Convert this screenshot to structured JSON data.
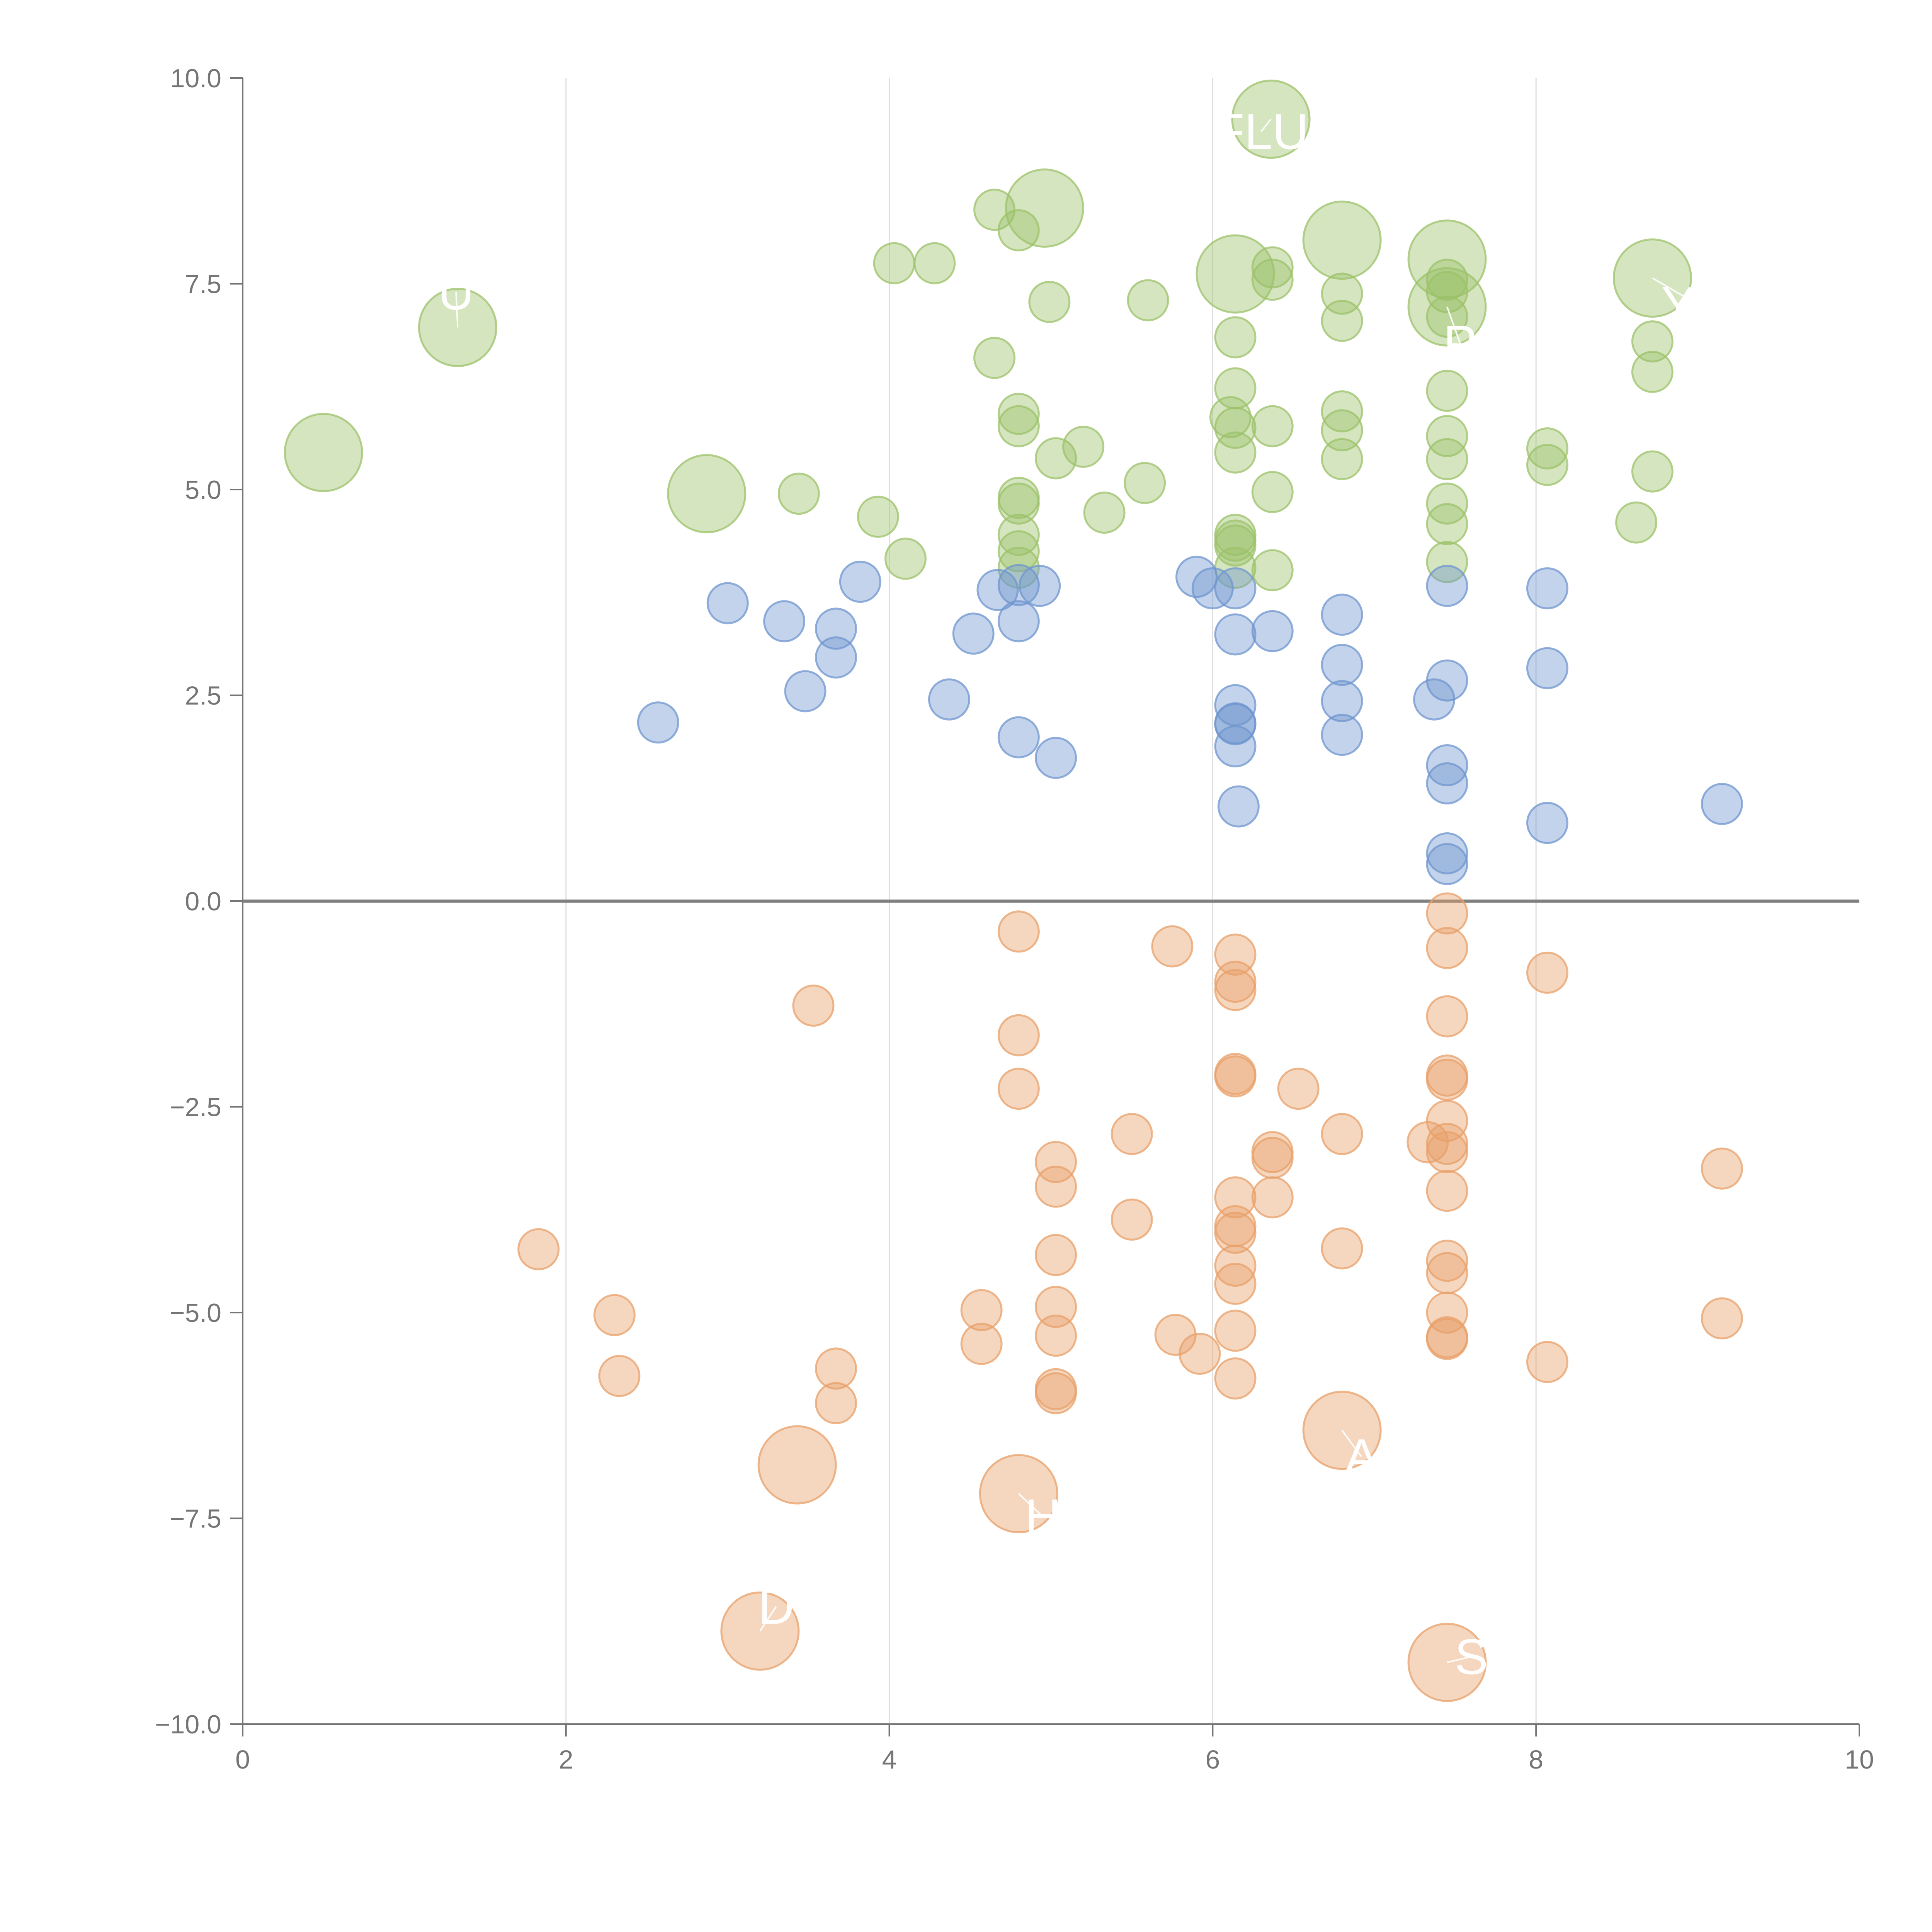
{
  "colors": {
    "positive_high": "#9cc16a",
    "positive_low": "#6f95cf",
    "negative": "#e8a06a"
  },
  "chart_data": {
    "type": "scatter",
    "title": "",
    "xlabel": "",
    "ylabel": "",
    "xlim": [
      0,
      10
    ],
    "ylim": [
      -10,
      10
    ],
    "x_ticks": [
      0,
      2,
      4,
      6,
      8,
      10
    ],
    "x_tick_labels": [
      "0",
      "2",
      "4",
      "6",
      "8",
      "10"
    ],
    "y_ticks": [
      -10,
      -7.5,
      -5,
      -2.5,
      0,
      2.5,
      5,
      7.5,
      10
    ],
    "y_tick_labels": [
      "−10.0",
      "−7.5",
      "−5.0",
      "−2.5",
      "0.0",
      "2.5",
      "5.0",
      "7.5",
      "10.0"
    ],
    "grid": "vertical",
    "reference_line_y": 0,
    "encoding": "bubble size and color indicate magnitude; green = y above 4, blue = 0 to 4, orange = below 0",
    "series": [
      {
        "name": "green",
        "color_key": "positive_high",
        "points": [
          [
            4.65,
            8.4,
            1
          ],
          [
            4.8,
            8.15,
            1
          ],
          [
            4.03,
            7.75,
            1
          ],
          [
            4.28,
            7.75,
            1
          ],
          [
            4.99,
            7.28,
            1
          ],
          [
            5.6,
            7.3,
            1
          ],
          [
            6.37,
            7.7,
            1
          ],
          [
            6.37,
            7.55,
            1
          ],
          [
            6.14,
            6.85,
            1
          ],
          [
            4.65,
            6.6,
            1
          ],
          [
            6.8,
            7.38,
            1
          ],
          [
            6.8,
            7.05,
            1
          ],
          [
            7.45,
            7.55,
            1
          ],
          [
            7.45,
            7.4,
            1
          ],
          [
            7.45,
            7.1,
            1
          ],
          [
            8.72,
            6.8,
            1
          ],
          [
            8.72,
            6.43,
            1
          ],
          [
            4.8,
            5.92,
            1
          ],
          [
            4.8,
            5.77,
            1
          ],
          [
            5.03,
            5.38,
            1
          ],
          [
            5.2,
            5.52,
            1
          ],
          [
            6.14,
            6.23,
            1
          ],
          [
            6.11,
            5.88,
            1
          ],
          [
            6.14,
            5.75,
            1
          ],
          [
            6.14,
            5.45,
            1
          ],
          [
            6.37,
            5.77,
            1
          ],
          [
            6.8,
            5.95,
            1
          ],
          [
            6.8,
            5.72,
            1
          ],
          [
            6.8,
            5.37,
            1
          ],
          [
            7.45,
            6.2,
            1
          ],
          [
            7.45,
            5.65,
            1
          ],
          [
            7.45,
            5.37,
            1
          ],
          [
            8.07,
            5.5,
            1
          ],
          [
            8.07,
            5.3,
            1
          ],
          [
            8.72,
            5.22,
            1
          ],
          [
            3.44,
            4.95,
            1
          ],
          [
            3.93,
            4.67,
            1
          ],
          [
            4.1,
            4.16,
            1
          ],
          [
            4.8,
            4.9,
            1
          ],
          [
            4.8,
            4.83,
            1
          ],
          [
            4.8,
            4.45,
            1
          ],
          [
            4.8,
            4.25,
            1
          ],
          [
            4.8,
            4.05,
            1
          ],
          [
            5.33,
            4.72,
            1
          ],
          [
            5.58,
            5.08,
            1
          ],
          [
            6.14,
            4.45,
            1
          ],
          [
            6.14,
            4.38,
            1
          ],
          [
            6.14,
            4.32,
            1
          ],
          [
            6.14,
            4.05,
            1
          ],
          [
            6.37,
            4.97,
            1
          ],
          [
            6.37,
            4.02,
            1
          ],
          [
            7.45,
            4.83,
            1
          ],
          [
            7.45,
            4.58,
            1
          ],
          [
            7.45,
            4.12,
            1
          ],
          [
            8.62,
            4.6,
            1
          ],
          [
            0.5,
            5.45,
            3
          ],
          [
            1.33,
            6.97,
            3
          ],
          [
            2.87,
            4.95,
            3
          ],
          [
            4.96,
            8.42,
            3
          ],
          [
            6.14,
            7.62,
            3
          ],
          [
            6.36,
            9.5,
            3
          ],
          [
            6.8,
            8.03,
            3
          ],
          [
            7.45,
            7.8,
            3
          ],
          [
            7.45,
            7.22,
            3
          ],
          [
            8.72,
            7.57,
            3
          ]
        ]
      },
      {
        "name": "blue",
        "color_key": "positive_low",
        "points": [
          [
            2.57,
            2.17,
            1
          ],
          [
            3.0,
            3.62,
            1
          ],
          [
            3.35,
            3.4,
            1
          ],
          [
            3.48,
            2.55,
            1
          ],
          [
            3.67,
            3.31,
            1
          ],
          [
            3.67,
            2.96,
            1
          ],
          [
            3.82,
            3.88,
            1
          ],
          [
            4.37,
            2.45,
            1
          ],
          [
            4.52,
            3.25,
            1
          ],
          [
            4.67,
            3.78,
            1
          ],
          [
            4.8,
            3.84,
            1
          ],
          [
            4.8,
            3.4,
            1
          ],
          [
            4.8,
            1.99,
            1
          ],
          [
            4.93,
            3.83,
            1
          ],
          [
            5.03,
            1.74,
            1
          ],
          [
            5.9,
            3.94,
            1
          ],
          [
            6.0,
            3.8,
            1
          ],
          [
            6.14,
            3.8,
            1
          ],
          [
            6.14,
            3.24,
            1
          ],
          [
            6.14,
            2.38,
            1
          ],
          [
            6.14,
            2.16,
            1
          ],
          [
            6.14,
            2.15,
            1
          ],
          [
            6.14,
            1.88,
            1
          ],
          [
            6.16,
            1.15,
            1
          ],
          [
            6.37,
            3.28,
            1
          ],
          [
            6.8,
            3.48,
            1
          ],
          [
            6.8,
            2.87,
            1
          ],
          [
            6.8,
            2.43,
            1
          ],
          [
            6.8,
            2.02,
            1
          ],
          [
            7.37,
            2.45,
            1
          ],
          [
            7.45,
            3.83,
            1
          ],
          [
            7.45,
            2.68,
            1
          ],
          [
            7.45,
            1.65,
            1
          ],
          [
            7.45,
            1.43,
            1
          ],
          [
            7.45,
            0.58,
            1
          ],
          [
            7.45,
            0.45,
            1
          ],
          [
            8.07,
            3.8,
            1
          ],
          [
            8.07,
            2.83,
            1
          ],
          [
            8.07,
            0.95,
            1
          ],
          [
            9.15,
            1.18,
            1
          ]
        ]
      },
      {
        "name": "orange",
        "color_key": "negative",
        "points": [
          [
            1.83,
            -4.23,
            1
          ],
          [
            2.3,
            -5.03,
            1
          ],
          [
            2.33,
            -5.77,
            1
          ],
          [
            3.53,
            -1.27,
            1
          ],
          [
            3.67,
            -5.68,
            1
          ],
          [
            3.67,
            -6.1,
            1
          ],
          [
            4.57,
            -4.97,
            1
          ],
          [
            4.57,
            -5.38,
            1
          ],
          [
            4.8,
            -0.37,
            1
          ],
          [
            4.8,
            -1.63,
            1
          ],
          [
            4.8,
            -2.28,
            1
          ],
          [
            5.03,
            -3.17,
            1
          ],
          [
            5.03,
            -3.47,
            1
          ],
          [
            5.03,
            -4.3,
            1
          ],
          [
            5.03,
            -4.93,
            1
          ],
          [
            5.03,
            -5.28,
            1
          ],
          [
            5.03,
            -5.93,
            1
          ],
          [
            5.03,
            -5.98,
            1
          ],
          [
            5.5,
            -2.83,
            1
          ],
          [
            5.5,
            -3.87,
            1
          ],
          [
            5.75,
            -0.55,
            1
          ],
          [
            5.77,
            -5.27,
            1
          ],
          [
            5.92,
            -5.5,
            1
          ],
          [
            6.14,
            -0.65,
            1
          ],
          [
            6.14,
            -0.98,
            1
          ],
          [
            6.14,
            -1.08,
            1
          ],
          [
            6.14,
            -2.1,
            1
          ],
          [
            6.14,
            -2.13,
            1
          ],
          [
            6.14,
            -3.6,
            1
          ],
          [
            6.14,
            -3.95,
            1
          ],
          [
            6.14,
            -4.03,
            1
          ],
          [
            6.14,
            -4.43,
            1
          ],
          [
            6.14,
            -4.65,
            1
          ],
          [
            6.14,
            -5.22,
            1
          ],
          [
            6.14,
            -5.8,
            1
          ],
          [
            6.37,
            -3.05,
            1
          ],
          [
            6.37,
            -3.12,
            1
          ],
          [
            6.37,
            -3.6,
            1
          ],
          [
            6.53,
            -2.28,
            1
          ],
          [
            6.8,
            -2.83,
            1
          ],
          [
            6.8,
            -4.22,
            1
          ],
          [
            7.33,
            -2.93,
            1
          ],
          [
            7.45,
            -0.15,
            1
          ],
          [
            7.45,
            -0.57,
            1
          ],
          [
            7.45,
            -1.4,
            1
          ],
          [
            7.45,
            -2.12,
            1
          ],
          [
            7.45,
            -2.17,
            1
          ],
          [
            7.45,
            -2.67,
            1
          ],
          [
            7.45,
            -2.95,
            1
          ],
          [
            7.45,
            -3.05,
            1
          ],
          [
            7.45,
            -3.52,
            1
          ],
          [
            7.45,
            -4.37,
            1
          ],
          [
            7.45,
            -4.52,
            1
          ],
          [
            7.45,
            -5.0,
            1
          ],
          [
            7.45,
            -5.3,
            1
          ],
          [
            7.45,
            -5.32,
            1
          ],
          [
            8.07,
            -0.87,
            1
          ],
          [
            8.07,
            -5.6,
            1
          ],
          [
            9.15,
            -3.25,
            1
          ],
          [
            9.15,
            -5.07,
            1
          ],
          [
            3.2,
            -8.87,
            3
          ],
          [
            3.43,
            -6.85,
            3
          ],
          [
            4.8,
            -7.2,
            3
          ],
          [
            6.8,
            -6.43,
            3
          ],
          [
            7.45,
            -9.25,
            3
          ]
        ]
      }
    ],
    "callouts": [
      {
        "label": "U",
        "x": 1.33,
        "y": 6.97,
        "lx": 1.32,
        "ly": 7.4
      },
      {
        "label": "FLU",
        "x": 6.36,
        "y": 9.5,
        "lx": 6.3,
        "ly": 9.35
      },
      {
        "label": "YO",
        "x": 8.72,
        "y": 7.57,
        "lx": 9.0,
        "ly": 7.25
      },
      {
        "label": "P",
        "x": 7.45,
        "y": 7.22,
        "lx": 7.53,
        "ly": 6.78
      },
      {
        "label": "A",
        "x": 6.8,
        "y": -6.43,
        "lx": 6.92,
        "ly": -6.75
      },
      {
        "label": "H",
        "x": 4.8,
        "y": -7.2,
        "lx": 4.95,
        "ly": -7.48
      },
      {
        "label": "D",
        "x": 3.2,
        "y": -8.87,
        "lx": 3.3,
        "ly": -8.57
      },
      {
        "label": "S",
        "x": 7.45,
        "y": -9.25,
        "lx": 7.6,
        "ly": -9.18
      }
    ]
  }
}
